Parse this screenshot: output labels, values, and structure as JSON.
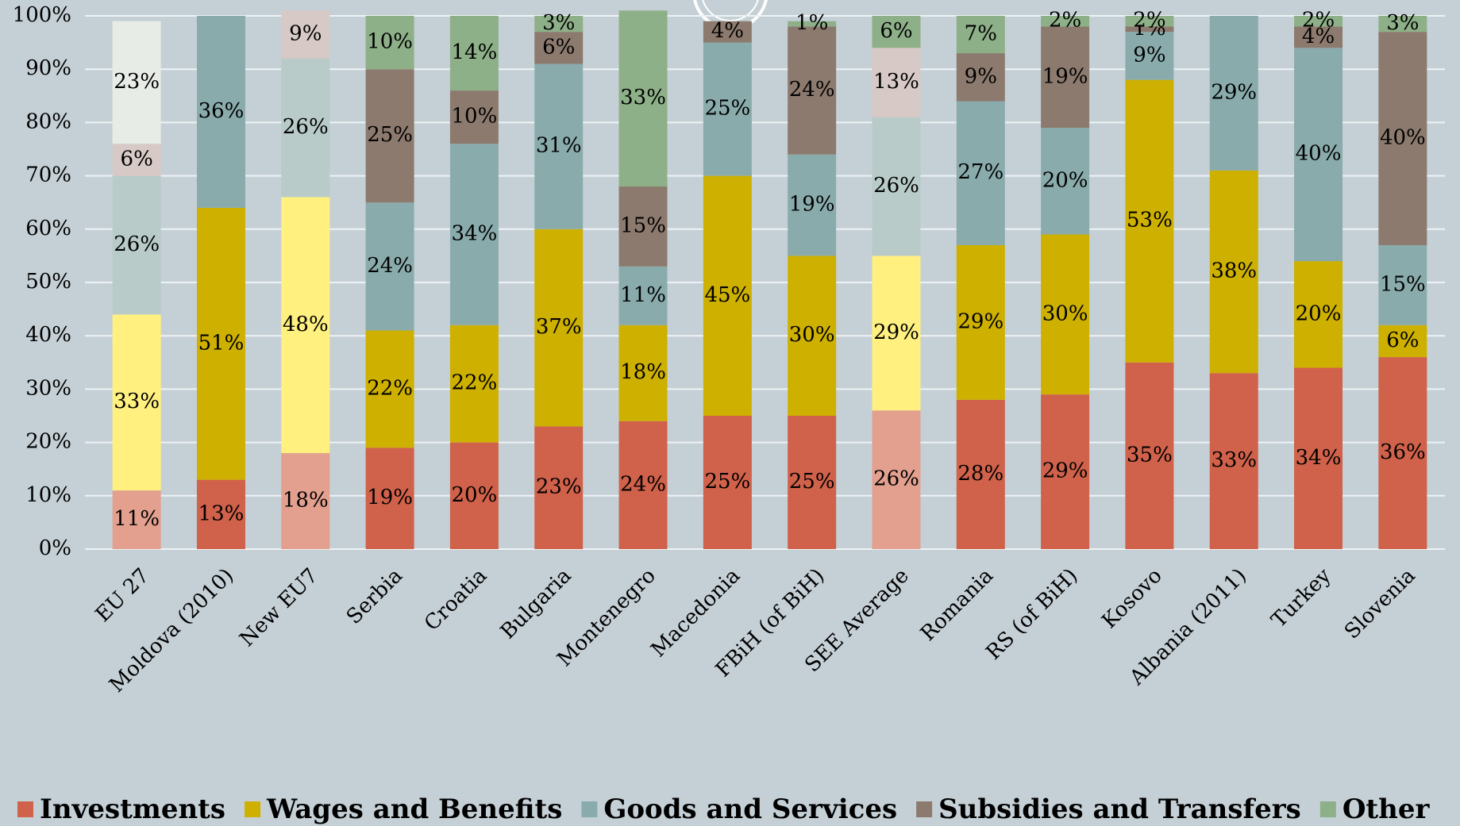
{
  "chart_data": {
    "type": "stacked_bar_100",
    "categories": [
      "EU 27",
      "Moldova (2010)",
      "New EU7",
      "Serbia",
      "Croatia",
      "Bulgaria",
      "Montenegro",
      "Macedonia",
      "FBiH (of BiH)",
      "SEE Average",
      "Romania",
      "RS (of BiH)",
      "Kosovo",
      "Albania (2011)",
      "Turkey",
      "Slovenia"
    ],
    "series": [
      {
        "name": "Investments",
        "color": "#d0614a",
        "colors": [
          "#e3a08f",
          "#d0614a",
          "#e3a08f",
          "#d0614a",
          "#d0614a",
          "#d0614a",
          "#d0614a",
          "#d0614a",
          "#d0614a",
          "#e3a08f",
          "#d0614a",
          "#d0614a",
          "#d0614a",
          "#d0614a",
          "#d0614a",
          "#d0614a"
        ],
        "values": [
          11,
          13,
          18,
          19,
          20,
          23,
          24,
          25,
          25,
          26,
          28,
          29,
          35,
          33,
          34,
          36
        ],
        "value_labels": [
          "11%",
          "13%",
          "18%",
          "19%",
          "20%",
          "23%",
          "24%",
          "25%",
          "25%",
          "26%",
          "28%",
          "29%",
          "35%",
          "33%",
          "34%",
          "36%"
        ]
      },
      {
        "name": "Wages and Benefits",
        "color": "#cdb000",
        "colors": [
          "#fff07f",
          "#cdb000",
          "#fff07f",
          "#cdb000",
          "#cdb000",
          "#cdb000",
          "#cdb000",
          "#cdb000",
          "#cdb000",
          "#fff07f",
          "#cdb000",
          "#cdb000",
          "#cdb000",
          "#cdb000",
          "#cdb000",
          "#cdb000"
        ],
        "values": [
          33,
          51,
          48,
          22,
          22,
          37,
          18,
          45,
          30,
          29,
          29,
          30,
          53,
          38,
          20,
          6
        ],
        "value_labels": [
          "33%",
          "51%",
          "48%",
          "22%",
          "22%",
          "37%",
          "18%",
          "45%",
          "30%",
          "29%",
          "29%",
          "30%",
          "53%",
          "38%",
          "20%",
          "6%"
        ]
      },
      {
        "name": "Goods and Services",
        "color": "#8aabac",
        "colors": [
          "#b8cbc8",
          "#8aabac",
          "#b8cbc8",
          "#8aabac",
          "#8aabac",
          "#8aabac",
          "#8aabac",
          "#8aabac",
          "#8aabac",
          "#b8cbc8",
          "#8aabac",
          "#8aabac",
          "#8aabac",
          "#8aabac",
          "#8aabac",
          "#8aabac"
        ],
        "values": [
          26,
          36,
          26,
          24,
          34,
          31,
          11,
          25,
          19,
          26,
          27,
          20,
          9,
          29,
          40,
          15
        ],
        "value_labels": [
          "26%",
          "36%",
          "26%",
          "24%",
          "34%",
          "31%",
          "11%",
          "25%",
          "19%",
          "26%",
          "27%",
          "20%",
          "9%",
          "29%",
          "40%",
          "15%"
        ]
      },
      {
        "name": "Subsidies and Transfers",
        "color": "#8c7a6e",
        "colors": [
          "#d7c9c5",
          "#8c7a6e",
          "#d7c9c5",
          "#8c7a6e",
          "#8c7a6e",
          "#8c7a6e",
          "#8c7a6e",
          "#8c7a6e",
          "#8c7a6e",
          "#d7c9c5",
          "#8c7a6e",
          "#8c7a6e",
          "#8c7a6e",
          "#8c7a6e",
          "#8c7a6e",
          "#8c7a6e"
        ],
        "values": [
          6,
          null,
          9,
          25,
          10,
          6,
          15,
          4,
          24,
          13,
          9,
          19,
          1,
          null,
          4,
          40
        ],
        "value_labels": [
          "6%",
          null,
          "9%",
          "25%",
          "10%",
          "6%",
          "15%",
          "4%",
          "24%",
          "13%",
          "9%",
          "19%",
          "1%",
          null,
          "4%",
          "40%"
        ]
      },
      {
        "name": "Other",
        "color": "#8eb088",
        "colors": [
          "#e8ece6",
          "#8eb088",
          "#e8ece6",
          "#8eb088",
          "#8eb088",
          "#8eb088",
          "#8eb088",
          "#8eb088",
          "#8eb088",
          "#8eb088",
          "#8eb088",
          "#8eb088",
          "#8eb088",
          "#8eb088",
          "#8eb088",
          "#8eb088"
        ],
        "values": [
          23,
          null,
          null,
          10,
          14,
          3,
          33,
          null,
          1,
          6,
          7,
          2,
          2,
          null,
          2,
          3
        ],
        "value_labels": [
          "23%",
          null,
          null,
          "10%",
          "14%",
          "3%",
          "33%",
          null,
          "1%",
          "6%",
          "7%",
          "2%",
          "2%",
          null,
          "2%",
          "3%"
        ]
      }
    ],
    "ylim": [
      0,
      100
    ],
    "yticks": [
      {
        "value": 0,
        "label": "0%"
      },
      {
        "value": 10,
        "label": "10%"
      },
      {
        "value": 20,
        "label": "20%"
      },
      {
        "value": 30,
        "label": "30%"
      },
      {
        "value": 40,
        "label": "40%"
      },
      {
        "value": 50,
        "label": "50%"
      },
      {
        "value": 60,
        "label": "60%"
      },
      {
        "value": 70,
        "label": "70%"
      },
      {
        "value": 80,
        "label": "80%"
      },
      {
        "value": 90,
        "label": "90%"
      },
      {
        "value": 100,
        "label": "100%"
      }
    ],
    "grid": true,
    "legend": "bottom"
  }
}
